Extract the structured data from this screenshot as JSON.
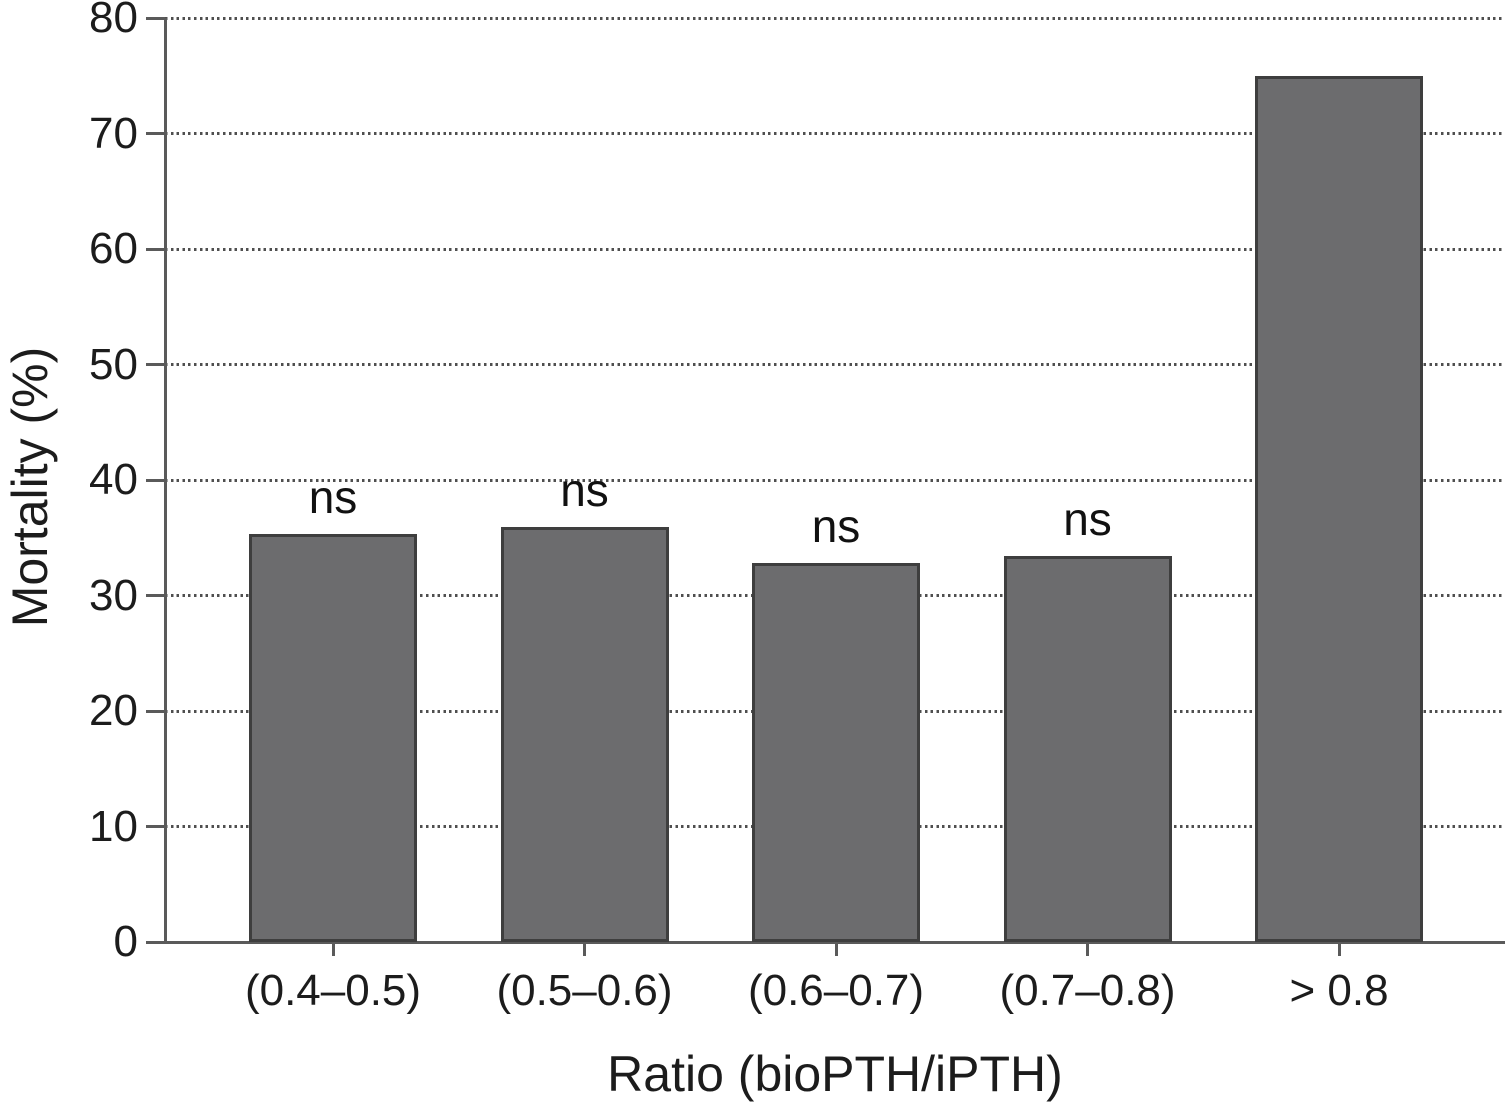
{
  "chart_data": {
    "type": "bar",
    "categories": [
      "(0.4–0.5)",
      "(0.5–0.6)",
      "(0.6–0.7)",
      "(0.7–0.8)",
      "> 0.8"
    ],
    "values": [
      35.3,
      35.9,
      32.8,
      33.4,
      75
    ],
    "bar_annotations": [
      "ns",
      "ns",
      "ns",
      "ns",
      ""
    ],
    "title": "",
    "xlabel": "Ratio (bioPTH/iPTH)",
    "ylabel": "Mortality (%)",
    "ylim": [
      0,
      80
    ],
    "ytick_interval": 10,
    "ytick_labels": [
      "0",
      "10",
      "20",
      "30",
      "40",
      "50",
      "60",
      "70",
      "80"
    ],
    "grid": "horizontal dotted",
    "legend": "none",
    "bar_color": "#6c6c6e",
    "bar_border_color": "#3e3e3e",
    "axis_color": "#5a5a5a",
    "grid_color": "#4f4f4f",
    "text_color": "#1c1c1c",
    "background_color": "#ffffff"
  }
}
